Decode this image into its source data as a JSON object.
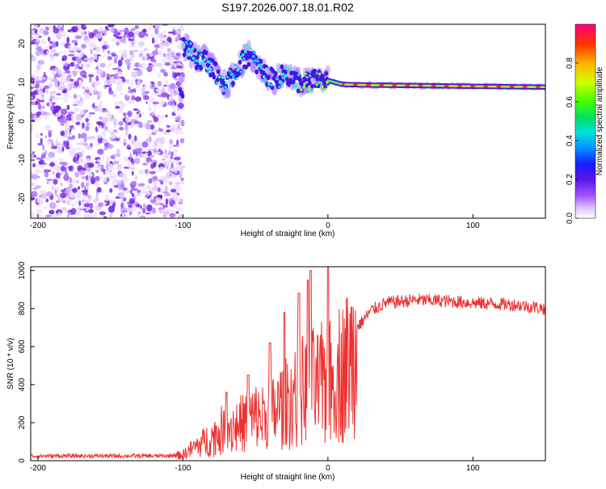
{
  "title": "S197.2026.007.18.01.R02",
  "chart_data": [
    {
      "type": "heatmap",
      "xlabel": "Height of straight line (km)",
      "ylabel": "Frequency (Hz)",
      "xlim": [
        -205,
        150
      ],
      "ylim": [
        -25,
        25
      ],
      "x_ticks": [
        -200,
        -100,
        0,
        100
      ],
      "y_ticks": [
        -20,
        -10,
        0,
        10,
        20
      ],
      "signal_ridge": [
        {
          "x": -100,
          "y": 20
        },
        {
          "x": -95,
          "y": 18
        },
        {
          "x": -90,
          "y": 16
        },
        {
          "x": -85,
          "y": 16
        },
        {
          "x": -80,
          "y": 14
        },
        {
          "x": -75,
          "y": 11
        },
        {
          "x": -70,
          "y": 9
        },
        {
          "x": -65,
          "y": 12
        },
        {
          "x": -60,
          "y": 15
        },
        {
          "x": -55,
          "y": 17
        },
        {
          "x": -50,
          "y": 15
        },
        {
          "x": -45,
          "y": 13
        },
        {
          "x": -40,
          "y": 11
        },
        {
          "x": -35,
          "y": 11
        },
        {
          "x": -30,
          "y": 12
        },
        {
          "x": -25,
          "y": 11
        },
        {
          "x": -20,
          "y": 10
        },
        {
          "x": -15,
          "y": 10
        },
        {
          "x": -10,
          "y": 10.5
        },
        {
          "x": -5,
          "y": 11
        },
        {
          "x": 0,
          "y": 10.5
        },
        {
          "x": 5,
          "y": 10
        },
        {
          "x": 10,
          "y": 9.5
        },
        {
          "x": 30,
          "y": 9.3
        },
        {
          "x": 60,
          "y": 9.2
        },
        {
          "x": 100,
          "y": 9
        },
        {
          "x": 150,
          "y": 8.8
        }
      ],
      "noise_region_x": [
        -205,
        -100
      ]
    },
    {
      "type": "line",
      "xlabel": "Height of straight line (km)",
      "ylabel": "SNR (10 * v/v)",
      "xlim": [
        -205,
        150
      ],
      "ylim": [
        0,
        1020
      ],
      "x_ticks": [
        -200,
        -100,
        0,
        100
      ],
      "y_ticks": [
        0,
        200,
        400,
        600,
        800,
        1000
      ],
      "envelope": [
        {
          "x": -205,
          "y": 25
        },
        {
          "x": -110,
          "y": 25
        },
        {
          "x": -100,
          "y": 40
        },
        {
          "x": -90,
          "y": 100
        },
        {
          "x": -80,
          "y": 150
        },
        {
          "x": -70,
          "y": 220
        },
        {
          "x": -60,
          "y": 240
        },
        {
          "x": -50,
          "y": 280
        },
        {
          "x": -40,
          "y": 300
        },
        {
          "x": -30,
          "y": 380
        },
        {
          "x": -20,
          "y": 450
        },
        {
          "x": -10,
          "y": 480
        },
        {
          "x": 0,
          "y": 500
        },
        {
          "x": 10,
          "y": 600
        },
        {
          "x": 20,
          "y": 700
        },
        {
          "x": 30,
          "y": 790
        },
        {
          "x": 40,
          "y": 830
        },
        {
          "x": 60,
          "y": 845
        },
        {
          "x": 80,
          "y": 840
        },
        {
          "x": 100,
          "y": 830
        },
        {
          "x": 130,
          "y": 820
        },
        {
          "x": 150,
          "y": 800
        }
      ],
      "peaks": [
        {
          "x": -12,
          "y": 1000
        },
        {
          "x": -14,
          "y": 950
        },
        {
          "x": -20,
          "y": 880
        },
        {
          "x": -30,
          "y": 780
        },
        {
          "x": 0,
          "y": 1020
        },
        {
          "x": -40,
          "y": 620
        },
        {
          "x": -55,
          "y": 450
        },
        {
          "x": -70,
          "y": 360
        }
      ],
      "color": "#ee3030"
    }
  ],
  "colorbar": {
    "label": "Normalized spectral amplitude",
    "ticks": [
      "0.0",
      "0.2",
      "0.4",
      "0.6",
      "0.8"
    ],
    "tick_values": [
      0.0,
      0.2,
      0.4,
      0.6,
      0.8
    ],
    "range": [
      0,
      1
    ]
  }
}
